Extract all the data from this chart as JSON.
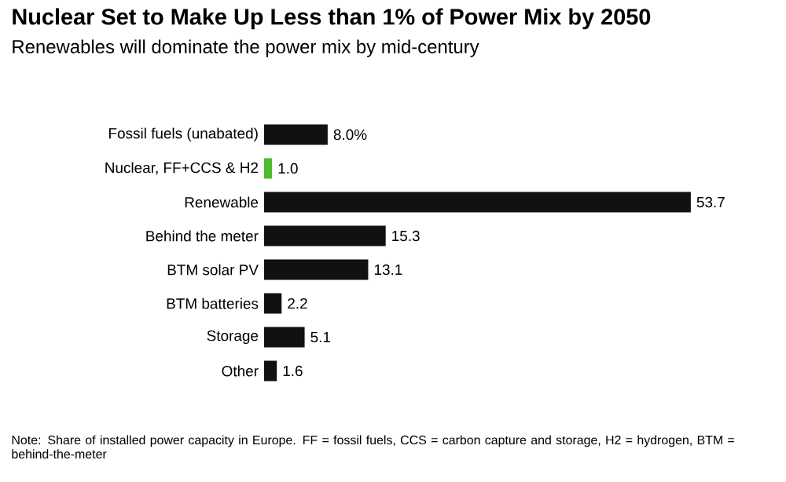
{
  "chart_data": {
    "type": "bar",
    "orientation": "horizontal",
    "title": "Nuclear Set to Make Up Less than 1% of Power Mix by 2050",
    "subtitle": "Renewables will dominate the power mix by mid-century",
    "categories": [
      "Fossil fuels (unabated)",
      "Nuclear, FF+CCS & H2",
      "Renewable",
      "Behind the meter",
      "BTM solar PV",
      "BTM batteries",
      "Storage",
      "Other"
    ],
    "values": [
      8.0,
      1.0,
      53.7,
      15.3,
      13.1,
      2.2,
      5.1,
      1.6
    ],
    "colors": [
      "#111111",
      "#4dbb2c",
      "#111111",
      "#111111",
      "#111111",
      "#111111",
      "#111111",
      "#111111"
    ],
    "value_labels": [
      "8.0%",
      "1.0",
      "53.7",
      "15.3",
      "13.1",
      "2.2",
      "5.1",
      "1.6"
    ],
    "annotations": [
      "Note: Share of installed power capacity in Europe. FF = fossil fuels, CCS = carbon capture and storage, H2 = hydrogen, BTM = behind-the-meter"
    ]
  }
}
